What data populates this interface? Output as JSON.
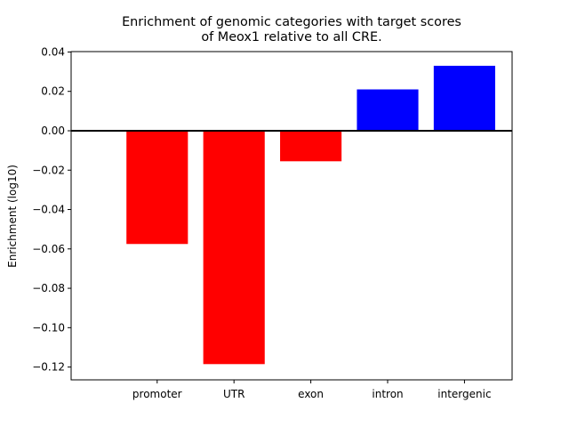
{
  "chart_data": {
    "type": "bar",
    "title_lines": [
      "Enrichment of genomic categories with target scores",
      "of Meox1 relative to all CRE."
    ],
    "xlabel": "",
    "ylabel": "Enrichment (log10)",
    "categories": [
      "promoter",
      "UTR",
      "exon",
      "intron",
      "intergenic"
    ],
    "values": [
      -0.0575,
      -0.1185,
      -0.0155,
      0.021,
      0.033
    ],
    "colors": [
      "#ff0000",
      "#ff0000",
      "#ff0000",
      "#0000ff",
      "#0000ff"
    ],
    "ylim": [
      -0.1265,
      0.0402
    ],
    "yticks": [
      0.04,
      0.02,
      0.0,
      -0.02,
      -0.04,
      -0.06,
      -0.08,
      -0.1,
      -0.12
    ],
    "ytick_labels": [
      "0.04",
      "0.02",
      "0.00",
      "−0.02",
      "−0.04",
      "−0.06",
      "−0.08",
      "−0.10",
      "−0.12"
    ],
    "zero_line_color": "#000000",
    "grid": false,
    "legend": "none"
  }
}
